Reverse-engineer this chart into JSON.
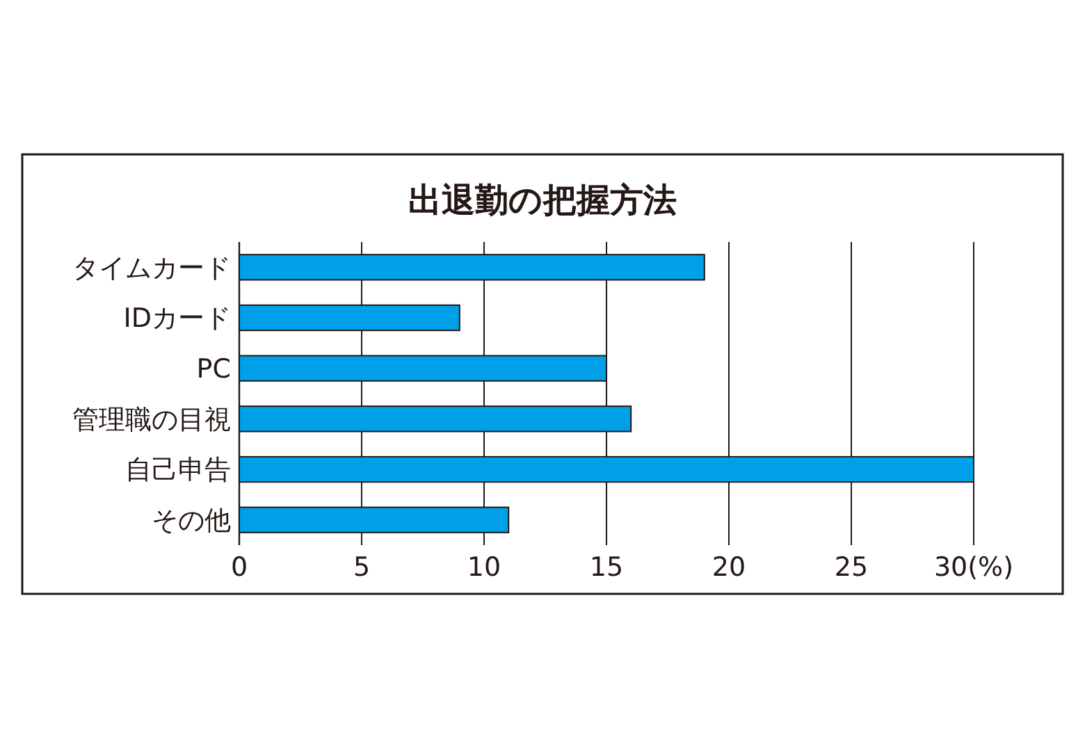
{
  "chart_data": {
    "type": "bar",
    "orientation": "horizontal",
    "title": "出退勤の把握方法",
    "categories": [
      "タイムカード",
      "IDカード",
      "PC",
      "管理職の目視",
      "自己申告",
      "その他"
    ],
    "values": [
      19,
      9,
      15,
      16,
      30,
      11
    ],
    "color": "#00a0e9",
    "xlim": [
      0,
      30
    ],
    "xticks": [
      0,
      5,
      10,
      15,
      20,
      25,
      {
        "value": 30,
        "label": "30(%)"
      }
    ],
    "grid": "x"
  }
}
